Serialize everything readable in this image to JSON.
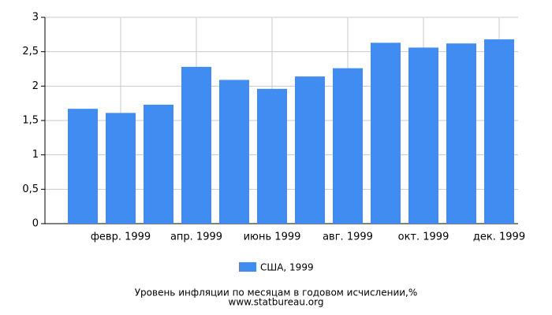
{
  "chart_data": {
    "type": "bar",
    "title": "Уровень инфляции по месяцам в годовом исчислении,%",
    "subtitle": "www.statbureau.org",
    "categories": [
      null,
      "февр. 1999",
      null,
      "апр. 1999",
      null,
      "июнь 1999",
      null,
      "авг. 1999",
      null,
      "окт. 1999",
      null,
      "дек. 1999"
    ],
    "series": [
      {
        "name": "США, 1999",
        "color": "#418cf0",
        "values": [
          1.67,
          1.61,
          1.73,
          2.28,
          2.09,
          1.96,
          2.14,
          2.26,
          2.63,
          2.56,
          2.62,
          2.68
        ]
      }
    ],
    "ylim": [
      0,
      3
    ],
    "yticks": [
      0,
      {
        "value": 0.5,
        "label": "0,5"
      },
      1,
      {
        "value": 1.5,
        "label": "1,5"
      },
      2,
      {
        "value": 2.5,
        "label": "2,5"
      },
      3
    ],
    "grid": true
  }
}
